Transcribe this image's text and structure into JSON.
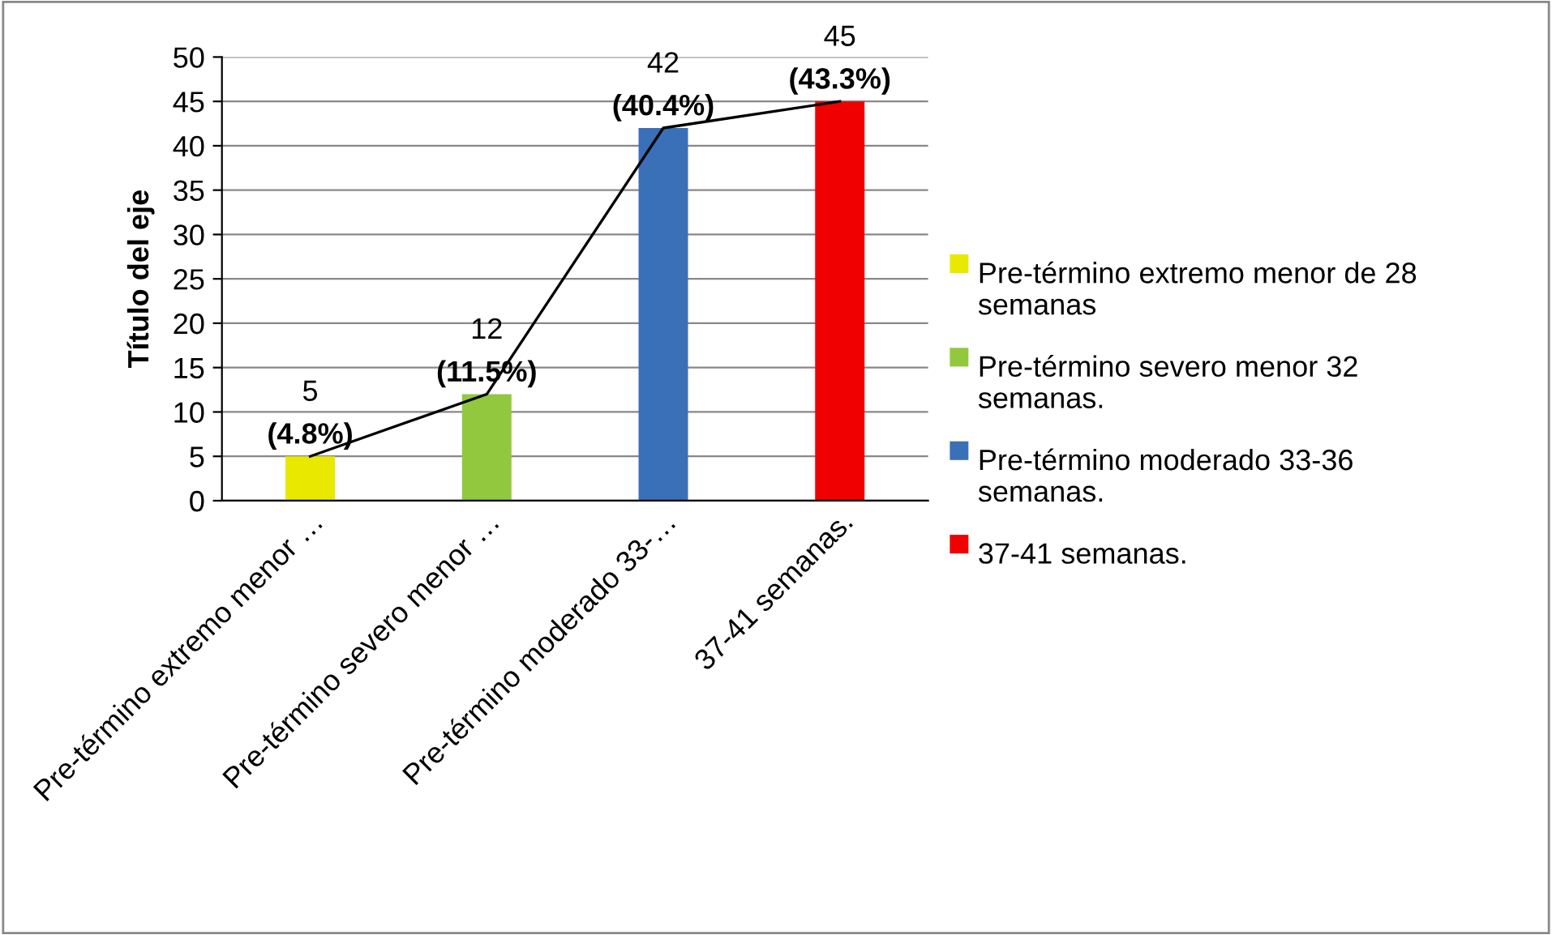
{
  "chart_data": {
    "type": "bar",
    "ylabel": "Título del eje",
    "categories": [
      "Pre-término extremo menor …",
      "Pre-término severo menor …",
      "Pre-término moderado 33-…",
      "37-41 semanas."
    ],
    "series": [
      {
        "name": "Pre-término extremo menor de 28 semanas",
        "color": "#e8e800",
        "values": [
          5,
          null,
          null,
          null
        ],
        "value_labels": [
          "5\n(4.8%)",
          null,
          null,
          null
        ]
      },
      {
        "name": "Pre-término severo menor 32 semanas.",
        "color": "#92c83e",
        "values": [
          null,
          12,
          null,
          null
        ],
        "value_labels": [
          null,
          "12\n(11.5%)",
          null,
          null
        ]
      },
      {
        "name": "Pre-término moderado 33-36 semanas.",
        "color": "#3a70b8",
        "values": [
          null,
          null,
          42,
          null
        ],
        "value_labels": [
          null,
          null,
          "42\n(40.4%)",
          null
        ]
      },
      {
        "name": "37-41 semanas.",
        "color": "#f00000",
        "values": [
          null,
          null,
          null,
          45
        ],
        "value_labels": [
          null,
          null,
          null,
          "45\n(43.3%)"
        ]
      },
      {
        "type": "line",
        "color": "#000000",
        "values": [
          5,
          12,
          42,
          45
        ]
      }
    ],
    "ylim": [
      0,
      50
    ],
    "yticks": [
      0,
      5,
      10,
      15,
      20,
      25,
      30,
      35,
      40,
      45,
      50
    ],
    "grid": "y",
    "legend": "right"
  }
}
